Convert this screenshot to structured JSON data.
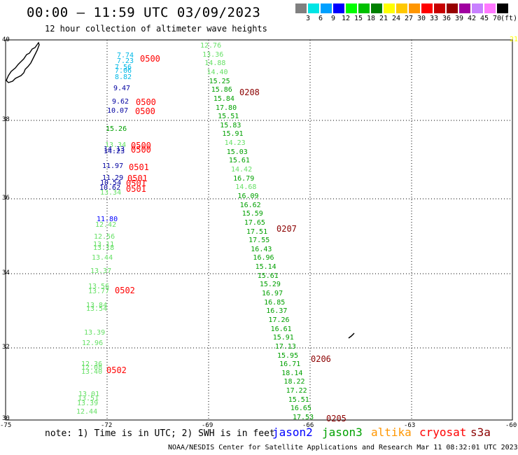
{
  "header": {
    "title": "00:00 – 11:59 UTC 03/09/2023",
    "subtitle": "12 hour collection of altimeter wave heights"
  },
  "colorbar": {
    "labels": [
      "3",
      "6",
      "9",
      "12",
      "15",
      "18",
      "21",
      "24",
      "27",
      "30",
      "33",
      "36",
      "39",
      "42",
      "45",
      "70"
    ],
    "unit": "(ft)",
    "colors": [
      "#808080",
      "#00e5e5",
      "#00a0ff",
      "#0000ff",
      "#00ff00",
      "#00c000",
      "#008000",
      "#ffff00",
      "#ffc800",
      "#ff9600",
      "#ff0000",
      "#c80000",
      "#960000",
      "#a000a0",
      "#c880ff",
      "#ff78ff",
      "#000000"
    ]
  },
  "axes": {
    "lat_labels": [
      "40",
      "38",
      "36",
      "34",
      "32",
      "30"
    ],
    "lon_labels": [
      "-75",
      "-72",
      "-69",
      "-66",
      "-63",
      "-60"
    ]
  },
  "series_colors": {
    "jason2": "#0000ff",
    "jason3": "#00a000",
    "altika": "#ff9600",
    "cryosat": "#ff0000",
    "s3a": "#8b0000",
    "light": "#66e066",
    "cyan": "#00b8e6",
    "navy": "#0000a0"
  },
  "track_right": {
    "values": [
      "12.76",
      "13.36",
      "14.88",
      "14.40",
      "15.25",
      "15.86",
      "15.84",
      "17.80",
      "15.51",
      "15.83",
      "15.91",
      "14.23",
      "15.03",
      "15.61",
      "14.42",
      "16.79",
      "14.68",
      "16.09",
      "16.62",
      "15.59",
      "17.65",
      "17.51",
      "17.55",
      "16.43",
      "16.96",
      "15.14",
      "15.61",
      "15.29",
      "16.97",
      "16.85",
      "16.37",
      "17.26",
      "16.61",
      "15.91",
      "17.13",
      "15.95",
      "16.71",
      "18.14",
      "18.22",
      "17.22",
      "15.51",
      "16.65",
      "17.53"
    ],
    "colors": [
      "light",
      "light",
      "light",
      "light",
      "jason3",
      "jason3",
      "jason3",
      "jason3",
      "jason3",
      "jason3",
      "jason3",
      "light",
      "jason3",
      "jason3",
      "light",
      "jason3",
      "light",
      "jason3",
      "jason3",
      "jason3",
      "jason3",
      "jason3",
      "jason3",
      "jason3",
      "jason3",
      "jason3",
      "jason3",
      "jason3",
      "jason3",
      "jason3",
      "jason3",
      "jason3",
      "jason3",
      "jason3",
      "jason3",
      "jason3",
      "jason3",
      "jason3",
      "jason3",
      "jason3",
      "jason3",
      "jason3",
      "jason3"
    ],
    "times": [
      "0208",
      "0207",
      "0206",
      "0205"
    ]
  },
  "track_left": {
    "values": [
      "7.74",
      "7.23",
      "7.56",
      "7.06",
      "8.82",
      "9.47",
      "9.62",
      "10.07",
      "15.26",
      "13.34",
      "14.13",
      "14.23",
      "11.97",
      "11.29",
      "10.54",
      "10.62",
      "13.34",
      "11.80",
      "12.42",
      "12.56",
      "13.11",
      "13.18",
      "13.44",
      "13.37",
      "13.56",
      "13.77",
      "13.84",
      "13.54",
      "13.39",
      "12.96",
      "12.36",
      "12.08",
      "13.40",
      "13.01",
      "13.51",
      "13.39",
      "12.44"
    ],
    "colors": [
      "cyan",
      "cyan",
      "cyan",
      "cyan",
      "cyan",
      "navy",
      "navy",
      "navy",
      "jason3",
      "light",
      "navy",
      "navy",
      "navy",
      "navy",
      "navy",
      "navy",
      "light",
      "jason2",
      "light",
      "light",
      "light",
      "light",
      "light",
      "light",
      "light",
      "light",
      "light",
      "light",
      "light",
      "light",
      "light",
      "light",
      "light",
      "light",
      "light",
      "light",
      "light"
    ],
    "times": [
      "0500",
      "0500",
      "0500",
      "0500",
      "0500",
      "0501",
      "0501",
      "0501",
      "0501",
      "0502",
      "0502"
    ]
  },
  "edge_label": "21",
  "note": "note: 1) Time is in UTC; 2) SWH is in feet",
  "legend": [
    {
      "name": "jason2",
      "color": "#0000ff"
    },
    {
      "name": "jason3",
      "color": "#00a000"
    },
    {
      "name": "altika",
      "color": "#ff9600"
    },
    {
      "name": "cryosat",
      "color": "#ff0000"
    },
    {
      "name": "s3a",
      "color": "#8b0000"
    }
  ],
  "footer": "NOAA/NESDIS Center for Satellite Applications and Research   Mar 11 08:32:01 UTC 2023"
}
